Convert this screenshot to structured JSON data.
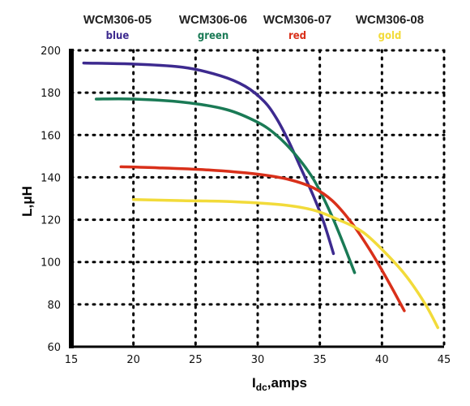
{
  "chart_data": {
    "type": "line",
    "xlabel": "I",
    "xlabel_sub": "dc",
    "xlabel_unit": ",amps",
    "ylabel": "L,μH",
    "xlim": [
      15,
      45
    ],
    "ylim": [
      60,
      200
    ],
    "xticks": [
      15,
      20,
      25,
      30,
      35,
      40,
      45
    ],
    "yticks": [
      60,
      80,
      100,
      120,
      140,
      160,
      180,
      200
    ],
    "grid": true,
    "series": [
      {
        "part": "WCM306-05",
        "name": "blue",
        "color": "#3d2a8f",
        "x": [
          16.0,
          20.0,
          24.0,
          27.0,
          29.0,
          30.5,
          31.5,
          32.5,
          33.5,
          34.5,
          35.3,
          36.1
        ],
        "y": [
          194.0,
          193.5,
          192.0,
          188.0,
          183.0,
          176.0,
          168.0,
          157.0,
          144.0,
          131.0,
          119.0,
          104.0
        ]
      },
      {
        "part": "WCM306-06",
        "name": "green",
        "color": "#1a7a55",
        "x": [
          17.0,
          20.0,
          24.0,
          27.5,
          30.0,
          31.5,
          33.0,
          34.5,
          35.8,
          36.8,
          37.8
        ],
        "y": [
          177.0,
          177.0,
          175.5,
          172.0,
          166.0,
          160.0,
          151.0,
          139.0,
          124.0,
          110.0,
          95.0
        ]
      },
      {
        "part": "WCM306-07",
        "name": "red",
        "color": "#d9301a",
        "x": [
          19.0,
          22.0,
          26.0,
          30.0,
          32.5,
          34.5,
          36.0,
          37.5,
          39.0,
          40.5,
          41.8
        ],
        "y": [
          145.0,
          144.5,
          143.5,
          141.5,
          139.0,
          135.0,
          129.0,
          119.0,
          106.0,
          91.0,
          77.0
        ]
      },
      {
        "part": "WCM306-08",
        "name": "gold",
        "color": "#f2db3a",
        "x": [
          20.0,
          24.0,
          28.0,
          32.0,
          34.5,
          36.5,
          38.5,
          40.5,
          42.0,
          43.5,
          44.5
        ],
        "y": [
          129.5,
          129.0,
          128.5,
          127.0,
          124.5,
          120.0,
          114.0,
          103.0,
          93.0,
          80.0,
          69.0
        ]
      }
    ]
  }
}
